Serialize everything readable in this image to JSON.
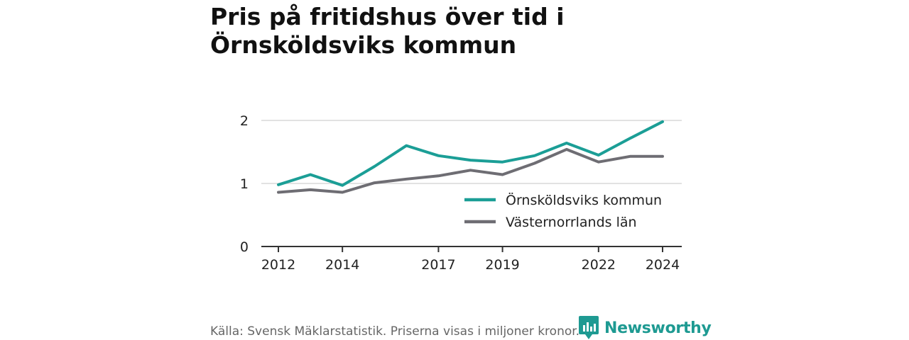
{
  "title": "Pris på fritidshus över tid i Örnsköldsviks kommun",
  "source": "Källa: Svensk Mäklarstatistik. Priserna visas i miljoner kronor.",
  "brand": {
    "name": "Newsworthy",
    "icon": "bar-chart-speech-bubble-icon"
  },
  "chart_data": {
    "type": "line",
    "x": [
      2012,
      2013,
      2014,
      2015,
      2016,
      2017,
      2018,
      2019,
      2020,
      2021,
      2022,
      2023,
      2024
    ],
    "x_ticks": [
      2012,
      2014,
      2017,
      2019,
      2022,
      2024
    ],
    "y_ticks": [
      0,
      1,
      2
    ],
    "xlim": [
      2012,
      2024
    ],
    "ylim": [
      0,
      2
    ],
    "grid": "horizontal",
    "legend_position": "bottom-right",
    "series": [
      {
        "name": "Örnsköldsviks kommun",
        "color": "#1b9e96",
        "values": [
          0.98,
          1.14,
          0.97,
          1.27,
          1.6,
          1.44,
          1.37,
          1.34,
          1.44,
          1.64,
          1.45,
          1.72,
          1.98
        ]
      },
      {
        "name": "Västernorrlands län",
        "color": "#6e6d73",
        "values": [
          0.86,
          0.9,
          0.86,
          1.01,
          1.07,
          1.12,
          1.21,
          1.14,
          1.32,
          1.54,
          1.34,
          1.43,
          1.43
        ]
      }
    ]
  }
}
